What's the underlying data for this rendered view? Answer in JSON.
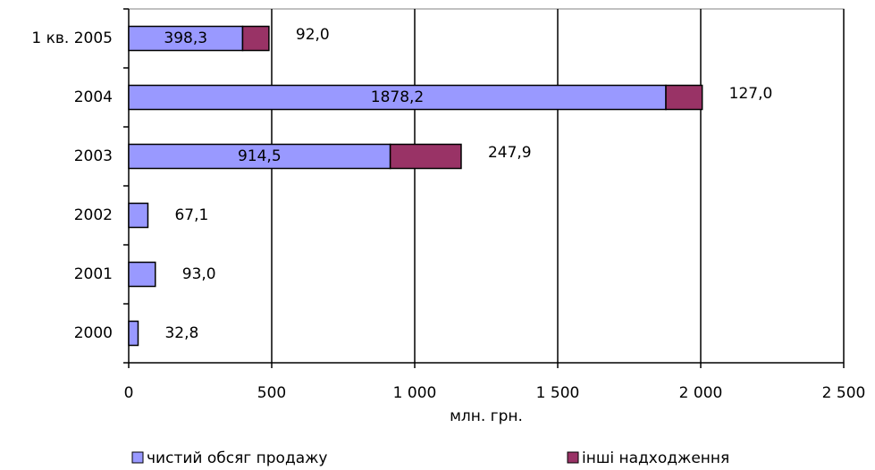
{
  "chart_data": {
    "type": "hbar_stacked",
    "categories": [
      "1 кв. 2005",
      "2004",
      "2003",
      "2002",
      "2001",
      "2000"
    ],
    "series": [
      {
        "name": "чистий обсяг продажу",
        "color": "#9999ff",
        "values": [
          398.3,
          1878.2,
          914.5,
          67.1,
          93.0,
          32.8
        ],
        "value_labels": [
          "398,3",
          "1878,2",
          "914,5",
          "67,1",
          "93,0",
          "32,8"
        ]
      },
      {
        "name": "інші надходження",
        "color": "#993366",
        "values": [
          92.0,
          127.0,
          247.9,
          null,
          null,
          null
        ],
        "value_labels": [
          "92,0",
          "127,0",
          "247,9",
          null,
          null,
          null
        ]
      }
    ],
    "xlabel": "млн. грн.",
    "xlim": [
      0,
      2500
    ],
    "xticks": [
      0,
      500,
      {
        "value": 1000,
        "label": "1 000"
      },
      {
        "value": 1500,
        "label": "1 500"
      },
      {
        "value": 2000,
        "label": "2 000"
      },
      {
        "value": 2500,
        "label": "2 500"
      }
    ],
    "grid": true,
    "legend": "bottom"
  }
}
